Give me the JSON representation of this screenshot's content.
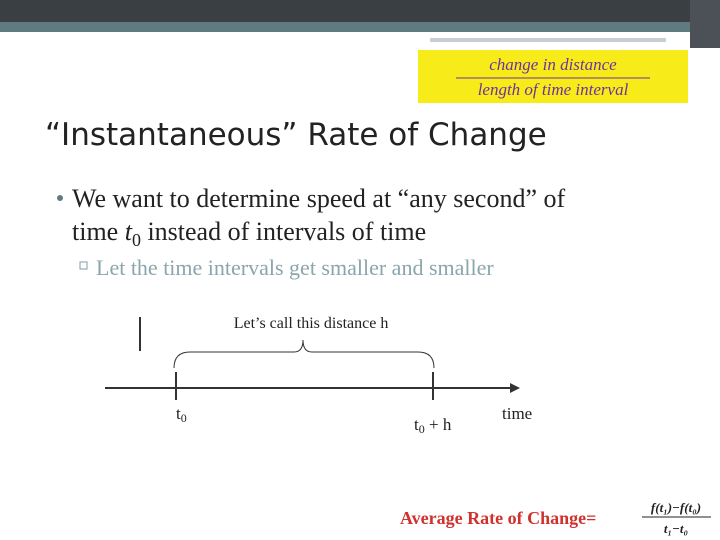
{
  "formula_box": {
    "numerator": "change in distance",
    "denominator": "length of time interval"
  },
  "title": "“Instantaneous” Rate of Change",
  "bullet": {
    "text_before": "We want to determine speed at “any second” of",
    "line2_start": "time ",
    "var": "t",
    "var_sub": "0",
    "text_after": " instead of intervals of time"
  },
  "sub_bullet": "Let the time intervals get smaller and smaller",
  "diagram": {
    "brace_label": "Let’s call this distance h",
    "t0": {
      "base": "t",
      "sub": "0"
    },
    "t0h": {
      "base": "t",
      "sub": "0",
      "rest": " + h"
    },
    "axis_label": "time"
  },
  "footer": {
    "label": "Average Rate of Change=",
    "numerator": "f(t₁)−f(t₀)",
    "denominator": "t₁−t₀"
  }
}
